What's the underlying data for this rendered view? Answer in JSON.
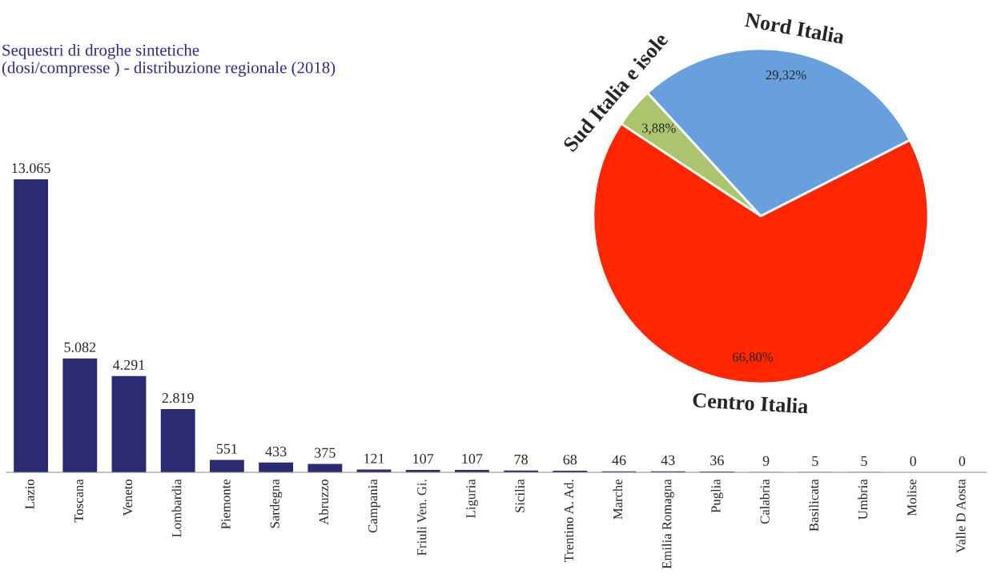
{
  "chart_data": [
    {
      "type": "bar",
      "title": "Sequestri di droghe sintetiche\n(dosi/compresse ) - distribuzione regionale (2018)",
      "categories": [
        "Lazio",
        "Toscana",
        "Veneto",
        "Lombardia",
        "Piemonte",
        "Sardegna",
        "Abruzzo",
        "Campania",
        "Friuli Ven. Gi.",
        "Liguria",
        "Sicilia",
        "Trentino A. Ad.",
        "Marche",
        "Emilia Romagna",
        "Puglia",
        "Calabria",
        "Basilicata",
        "Umbria",
        "Molise",
        "Valle D Aosta"
      ],
      "values": [
        13065,
        5082,
        4291,
        2819,
        551,
        433,
        375,
        121,
        107,
        107,
        78,
        68,
        46,
        43,
        36,
        9,
        5,
        5,
        0,
        0
      ],
      "value_labels": [
        "13.065",
        "5.082",
        "4.291",
        "2.819",
        "551",
        "433",
        "375",
        "121",
        "107",
        "107",
        "78",
        "68",
        "46",
        "43",
        "36",
        "9",
        "5",
        "5",
        "0",
        "0"
      ],
      "color": "#2b2b73",
      "legend": false,
      "grid": false
    },
    {
      "type": "pie",
      "categories": [
        "Nord Italia",
        "Sud Italia e isole",
        "Centro Italia"
      ],
      "values": [
        29.32,
        3.88,
        66.8
      ],
      "value_labels": [
        "29,32%",
        "3,88%",
        "66,80%"
      ],
      "colors": [
        "#68a0de",
        "#aac56e",
        "#ff2600"
      ],
      "legend": false
    }
  ]
}
